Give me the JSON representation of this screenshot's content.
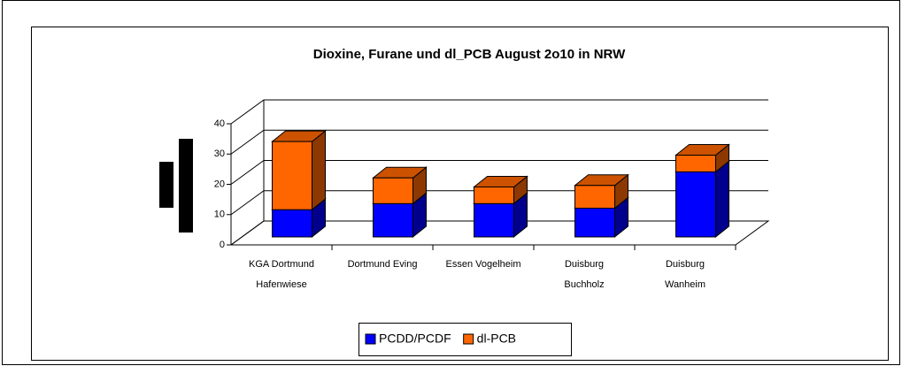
{
  "chart_data": {
    "type": "bar3d_stacked",
    "title": "Dioxine, Furane und dl_PCB August 2o10 in NRW",
    "categories": [
      [
        "KGA Dortmund",
        "Hafenwiese"
      ],
      [
        "Dortmund Eving"
      ],
      [
        "Essen Vogelheim"
      ],
      [
        "Duisburg",
        "Buchholz"
      ],
      [
        "Duisburg",
        "Wanheim"
      ]
    ],
    "series": [
      {
        "name": "PCDD/PCDF",
        "color": "#0000ff",
        "values": [
          9,
          11,
          11,
          9.5,
          21.5
        ]
      },
      {
        "name": "dl-PCB",
        "color": "#ff6600",
        "values": [
          22.5,
          8.5,
          5.5,
          7.5,
          5.5
        ]
      }
    ],
    "ylim": [
      0,
      40
    ],
    "yticks": [
      0,
      10,
      20,
      30,
      40
    ],
    "grid": true,
    "legend": "bottom"
  }
}
